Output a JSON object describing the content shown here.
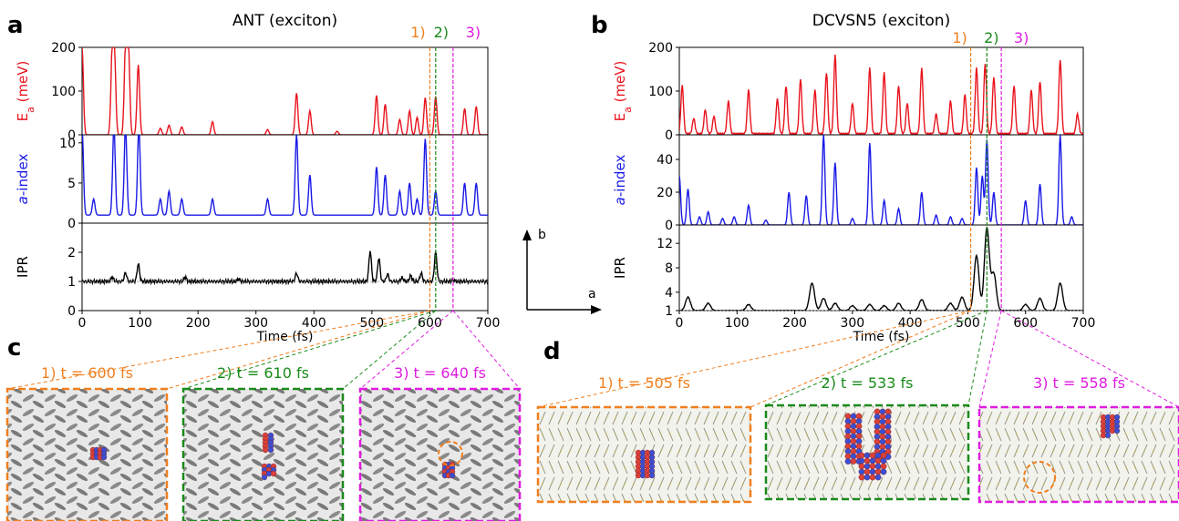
{
  "panel_letters": {
    "a": "a",
    "b": "b",
    "c": "c",
    "d": "d"
  },
  "colors": {
    "ea": "#e8141e",
    "aindex": "#1a1ae6",
    "ipr": "#000000",
    "m1": "#f07f1f",
    "m2": "#1a8a1a",
    "m3": "#e01ce0"
  },
  "lattice_axes": {
    "b": "b",
    "a": "a"
  },
  "chart_data": [
    {
      "type": "line",
      "title": "ANT (exciton)",
      "xlabel": "Time (fs)",
      "xlim": [
        0,
        700
      ],
      "xticks": [
        0,
        100,
        200,
        300,
        400,
        500,
        600,
        700
      ],
      "markers": [
        {
          "label": "1)",
          "x": 600
        },
        {
          "label": "2)",
          "x": 610
        },
        {
          "label": "3)",
          "x": 640
        }
      ],
      "series": [
        {
          "name": "E_a (meV)",
          "ylim": [
            0,
            200
          ],
          "yticks": [
            0,
            100,
            200
          ],
          "peaks": [
            [
              0,
              200
            ],
            [
              52,
              185
            ],
            [
              56,
              170
            ],
            [
              75,
              200
            ],
            [
              80,
              200
            ],
            [
              97,
              160
            ],
            [
              135,
              15
            ],
            [
              150,
              22
            ],
            [
              172,
              18
            ],
            [
              225,
              30
            ],
            [
              320,
              12
            ],
            [
              370,
              95
            ],
            [
              393,
              55
            ],
            [
              440,
              8
            ],
            [
              508,
              90
            ],
            [
              523,
              70
            ],
            [
              548,
              35
            ],
            [
              565,
              55
            ],
            [
              578,
              40
            ],
            [
              592,
              85
            ],
            [
              610,
              88
            ],
            [
              660,
              60
            ],
            [
              680,
              65
            ]
          ]
        },
        {
          "name": "a-index",
          "ylim": [
            0,
            11
          ],
          "yticks": [
            0,
            5,
            10
          ],
          "peaks": [
            [
              0,
              11
            ],
            [
              20,
              2
            ],
            [
              55,
              11
            ],
            [
              75,
              11
            ],
            [
              98,
              11
            ],
            [
              135,
              2
            ],
            [
              150,
              3
            ],
            [
              172,
              2
            ],
            [
              225,
              2
            ],
            [
              320,
              2
            ],
            [
              370,
              10
            ],
            [
              393,
              5
            ],
            [
              508,
              6
            ],
            [
              523,
              5
            ],
            [
              548,
              3
            ],
            [
              565,
              4
            ],
            [
              578,
              2
            ],
            [
              592,
              9.5
            ],
            [
              610,
              3
            ],
            [
              660,
              4
            ],
            [
              680,
              4
            ]
          ]
        },
        {
          "name": "IPR",
          "ylim": [
            0,
            3
          ],
          "yticks": [
            0,
            1,
            2
          ],
          "peaks": [
            [
              52,
              0.15
            ],
            [
              75,
              0.3
            ],
            [
              97,
              0.6
            ],
            [
              178,
              0.15
            ],
            [
              270,
              0.08
            ],
            [
              370,
              0.28
            ],
            [
              497,
              1.05
            ],
            [
              512,
              0.8
            ],
            [
              527,
              0.25
            ],
            [
              552,
              0.12
            ],
            [
              567,
              0.2
            ],
            [
              585,
              0.28
            ],
            [
              610,
              1.0
            ],
            [
              640,
              0.05
            ]
          ]
        }
      ]
    },
    {
      "type": "line",
      "title": "DCVSN5 (exciton)",
      "xlabel": "Time (fs)",
      "xlim": [
        0,
        700
      ],
      "xticks": [
        0,
        100,
        200,
        300,
        400,
        500,
        600,
        700
      ],
      "markers": [
        {
          "label": "1)",
          "x": 505
        },
        {
          "label": "2)",
          "x": 533
        },
        {
          "label": "3)",
          "x": 558
        }
      ],
      "series": [
        {
          "name": "E_a (meV)",
          "ylim": [
            0,
            200
          ],
          "yticks": [
            0,
            100,
            200
          ],
          "peaks": [
            [
              5,
              110
            ],
            [
              25,
              35
            ],
            [
              45,
              55
            ],
            [
              60,
              40
            ],
            [
              85,
              75
            ],
            [
              120,
              100
            ],
            [
              170,
              80
            ],
            [
              185,
              110
            ],
            [
              210,
              125
            ],
            [
              235,
              100
            ],
            [
              255,
              140
            ],
            [
              270,
              180
            ],
            [
              300,
              70
            ],
            [
              330,
              150
            ],
            [
              355,
              140
            ],
            [
              380,
              110
            ],
            [
              395,
              70
            ],
            [
              420,
              150
            ],
            [
              445,
              45
            ],
            [
              470,
              75
            ],
            [
              495,
              90
            ],
            [
              515,
              150
            ],
            [
              530,
              160
            ],
            [
              545,
              130
            ],
            [
              580,
              110
            ],
            [
              610,
              100
            ],
            [
              625,
              120
            ],
            [
              660,
              170
            ],
            [
              690,
              45
            ]
          ]
        },
        {
          "name": "a-index",
          "ylim": [
            0,
            55
          ],
          "yticks": [
            0,
            20,
            40
          ],
          "peaks": [
            [
              0,
              30
            ],
            [
              15,
              22
            ],
            [
              35,
              5
            ],
            [
              50,
              8
            ],
            [
              75,
              4
            ],
            [
              95,
              5
            ],
            [
              120,
              12
            ],
            [
              150,
              3
            ],
            [
              190,
              20
            ],
            [
              220,
              18
            ],
            [
              250,
              55
            ],
            [
              270,
              38
            ],
            [
              300,
              4
            ],
            [
              330,
              50
            ],
            [
              355,
              15
            ],
            [
              380,
              10
            ],
            [
              420,
              20
            ],
            [
              445,
              6
            ],
            [
              470,
              5
            ],
            [
              490,
              4
            ],
            [
              515,
              35
            ],
            [
              525,
              30
            ],
            [
              533,
              52
            ],
            [
              545,
              20
            ],
            [
              600,
              15
            ],
            [
              625,
              25
            ],
            [
              660,
              55
            ],
            [
              680,
              5
            ]
          ]
        },
        {
          "name": "IPR",
          "ylim": [
            1,
            15
          ],
          "yticks": [
            1,
            4,
            8,
            12
          ],
          "peaks": [
            [
              15,
              2.2
            ],
            [
              50,
              1.2
            ],
            [
              120,
              1
            ],
            [
              230,
              4.5
            ],
            [
              250,
              2
            ],
            [
              270,
              1.2
            ],
            [
              300,
              0.8
            ],
            [
              330,
              1
            ],
            [
              355,
              0.8
            ],
            [
              380,
              1.2
            ],
            [
              420,
              1.8
            ],
            [
              470,
              1.2
            ],
            [
              490,
              2.2
            ],
            [
              515,
              9
            ],
            [
              533,
              13.5
            ],
            [
              545,
              6
            ],
            [
              600,
              1
            ],
            [
              625,
              2
            ],
            [
              660,
              4.5
            ]
          ]
        }
      ]
    }
  ],
  "snapshots_c": [
    {
      "label": "1) t = 600 fs"
    },
    {
      "label": "2) t = 610 fs"
    },
    {
      "label": "3) t = 640 fs"
    }
  ],
  "snapshots_d": [
    {
      "label": "1) t = 505 fs"
    },
    {
      "label": "2) t = 533 fs"
    },
    {
      "label": "3) t = 558 fs"
    }
  ]
}
